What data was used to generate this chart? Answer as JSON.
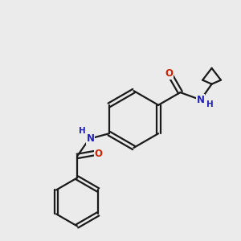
{
  "background_color": "#ebebeb",
  "bond_color": "#1a1a1a",
  "N_color": "#2222bb",
  "O_color": "#cc2200",
  "figsize": [
    3.0,
    3.0
  ],
  "dpi": 100,
  "xlim": [
    0,
    10
  ],
  "ylim": [
    0,
    10
  ]
}
